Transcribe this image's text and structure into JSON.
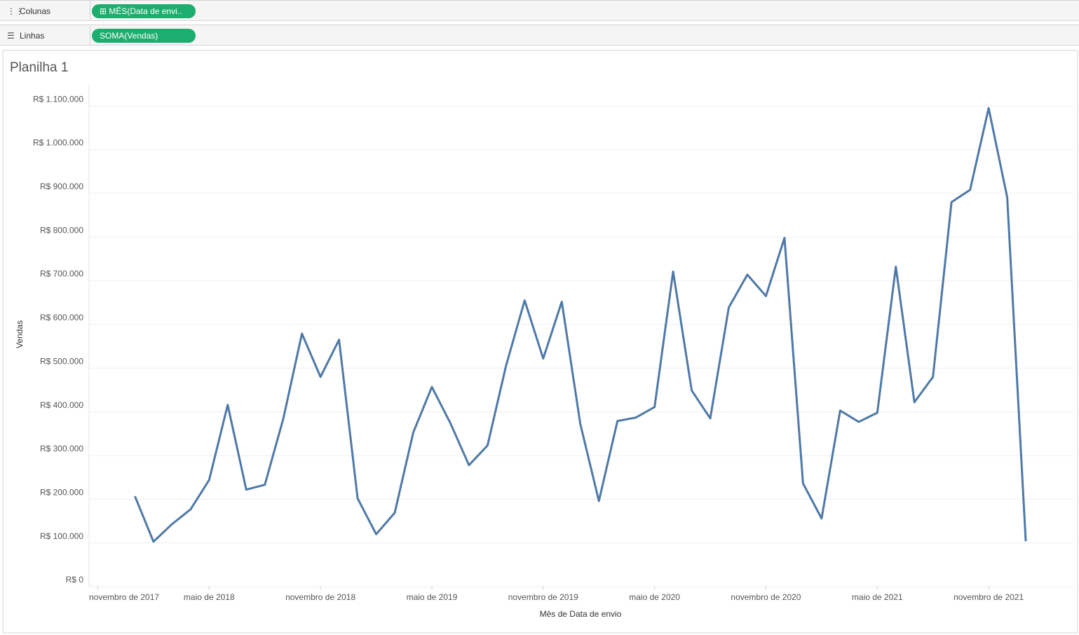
{
  "shelves": {
    "columns": {
      "label": "Colunas",
      "pill": "MÊS(Data de envi.."
    },
    "rows": {
      "label": "Linhas",
      "pill": "SOMA(Vendas)"
    }
  },
  "chart_data": {
    "type": "line",
    "title": "Planilha 1",
    "x_label": "Mês de Data de envio",
    "y_label": "Vendas",
    "x": [
      "2018-01",
      "2018-02",
      "2018-03",
      "2018-04",
      "2018-05",
      "2018-06",
      "2018-07",
      "2018-08",
      "2018-09",
      "2018-10",
      "2018-11",
      "2018-12",
      "2019-01",
      "2019-02",
      "2019-03",
      "2019-04",
      "2019-05",
      "2019-06",
      "2019-07",
      "2019-08",
      "2019-09",
      "2019-10",
      "2019-11",
      "2019-12",
      "2020-01",
      "2020-02",
      "2020-03",
      "2020-04",
      "2020-05",
      "2020-06",
      "2020-07",
      "2020-08",
      "2020-09",
      "2020-10",
      "2020-11",
      "2020-12",
      "2021-01",
      "2021-02",
      "2021-03",
      "2021-04",
      "2021-05",
      "2021-06",
      "2021-07",
      "2021-08",
      "2021-09",
      "2021-10",
      "2021-11",
      "2021-12",
      "2022-01"
    ],
    "series": [
      {
        "name": "Vendas",
        "color": "#4e79a7",
        "values": [
          207000,
          103000,
          143000,
          177000,
          244000,
          416000,
          222000,
          233000,
          385000,
          579000,
          480000,
          565000,
          202000,
          120000,
          169000,
          353000,
          457000,
          374000,
          278000,
          323000,
          506000,
          655000,
          522000,
          652000,
          372000,
          196000,
          379000,
          387000,
          411000,
          721000,
          449000,
          385000,
          639000,
          714000,
          665000,
          798000,
          236000,
          156000,
          403000,
          377000,
          398000,
          732000,
          422000,
          480000,
          880000,
          908000,
          1095000,
          891000,
          104000
        ]
      }
    ],
    "xlim": [
      "2017-10",
      "2022-03"
    ],
    "xticks": [
      {
        "value": "2017-11",
        "label": "novembro de 2017"
      },
      {
        "value": "2018-05",
        "label": "maio de 2018"
      },
      {
        "value": "2018-11",
        "label": "novembro de 2018"
      },
      {
        "value": "2019-05",
        "label": "maio de 2019"
      },
      {
        "value": "2019-11",
        "label": "novembro de 2019"
      },
      {
        "value": "2020-05",
        "label": "maio de 2020"
      },
      {
        "value": "2020-11",
        "label": "novembro de 2020"
      },
      {
        "value": "2021-05",
        "label": "maio de 2021"
      },
      {
        "value": "2021-11",
        "label": "novembro de 2021"
      }
    ],
    "ylim": [
      0,
      1150000
    ],
    "yticks": [
      {
        "value": 0,
        "label": "R$ 0"
      },
      {
        "value": 100000,
        "label": "R$ 100.000"
      },
      {
        "value": 200000,
        "label": "R$ 200.000"
      },
      {
        "value": 300000,
        "label": "R$ 300.000"
      },
      {
        "value": 400000,
        "label": "R$ 400.000"
      },
      {
        "value": 500000,
        "label": "R$ 500.000"
      },
      {
        "value": 600000,
        "label": "R$ 600.000"
      },
      {
        "value": 700000,
        "label": "R$ 700.000"
      },
      {
        "value": 800000,
        "label": "R$ 800.000"
      },
      {
        "value": 900000,
        "label": "R$ 900.000"
      },
      {
        "value": 1000000,
        "label": "R$ 1.000.000"
      },
      {
        "value": 1100000,
        "label": "R$ 1.100.000"
      }
    ],
    "grid": true
  }
}
